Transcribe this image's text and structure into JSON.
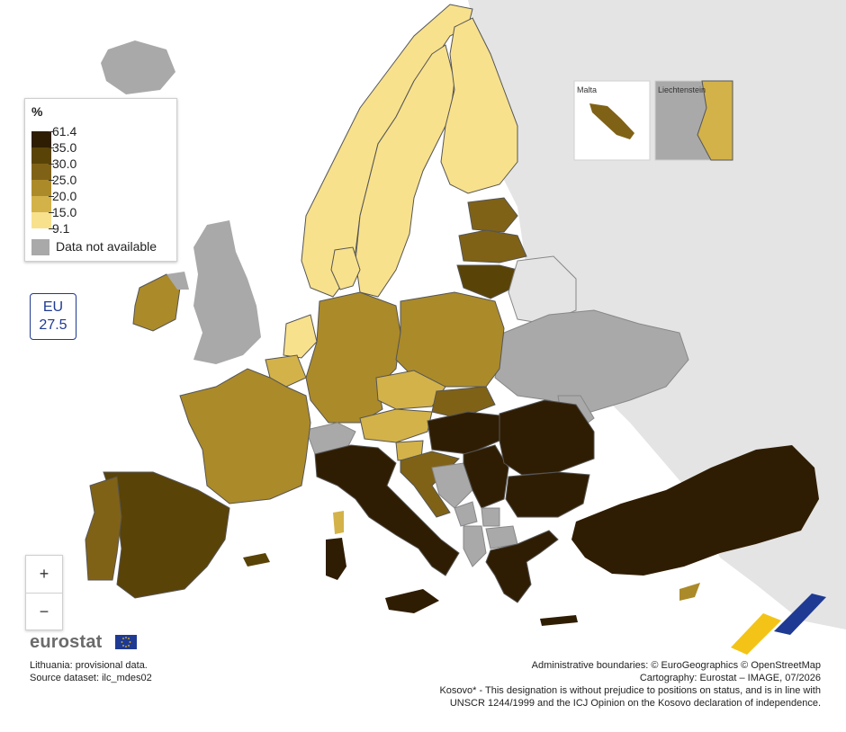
{
  "legend": {
    "title": "%",
    "ticks": [
      "61.4",
      "35.0",
      "30.0",
      "25.0",
      "20.0",
      "15.0",
      "9.1"
    ],
    "colors": [
      "#2f1d03",
      "#5a4307",
      "#806217",
      "#ab8a2a",
      "#d3b24a",
      "#f8e18d"
    ],
    "not_available_label": "Data not available",
    "not_available_color": "#a9a9a9"
  },
  "eu_indicator": {
    "label": "EU",
    "value": "27.5"
  },
  "zoom": {
    "in_label": "+",
    "out_label": "−"
  },
  "insets": {
    "malta": "Malta",
    "liechtenstein": "Liechtenstein"
  },
  "brand": "eurostat",
  "notes": {
    "line1": "Lithuania: provisional data.",
    "line2": "Source dataset: ilc_mdes02"
  },
  "credits": {
    "line1": "Administrative boundaries: © EuroGeographics © OpenStreetMap",
    "line2": "Cartography: Eurostat – IMAGE, 07/2026",
    "line3": "Kosovo* - This designation is without prejudice to positions on status, and is in line with",
    "line4": "UNSCR 1244/1999 and the ICJ Opinion on the Kosovo declaration of independence."
  },
  "colors": {
    "background_land": "#e4e4e4",
    "sea": "#ffffff",
    "border": "#555555"
  }
}
